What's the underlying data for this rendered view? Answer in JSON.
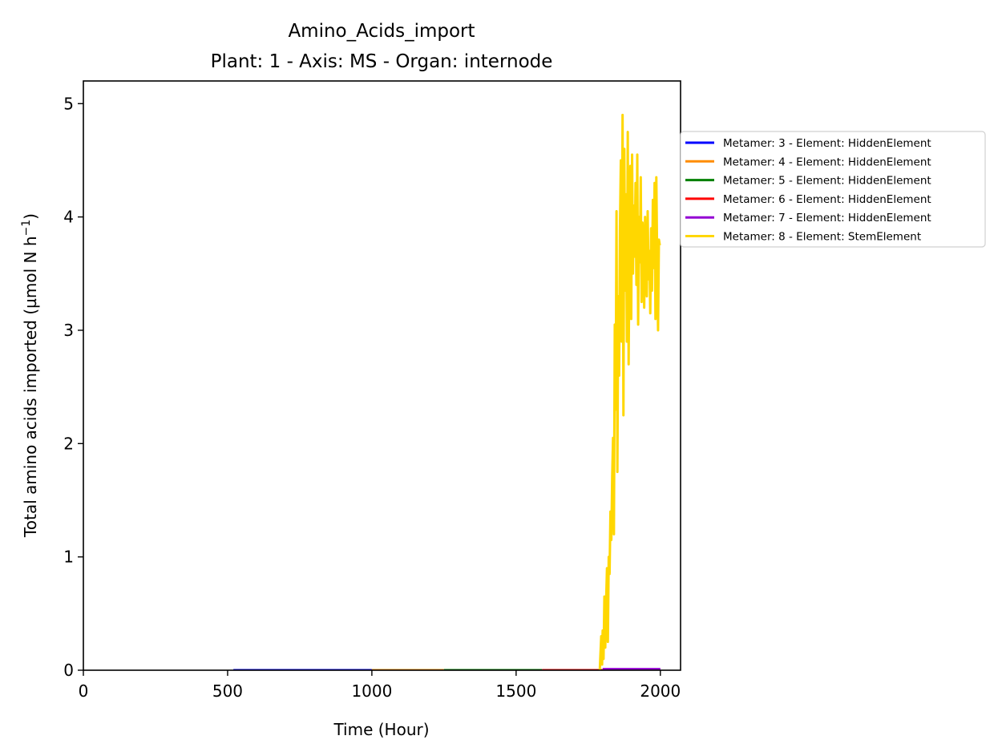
{
  "chart_data": {
    "type": "line",
    "title": "Amino_Acids_import",
    "subtitle": "Plant: 1 - Axis: MS - Organ: internode",
    "xlabel": "Time (Hour)",
    "ylabel": "Total amino acids imported (µmol N h",
    "ylabel_sup": "−1",
    "ylabel_close": ")",
    "xlim": [
      0,
      2070
    ],
    "ylim": [
      0,
      5.2
    ],
    "xticks": [
      0,
      500,
      1000,
      1500,
      2000
    ],
    "yticks": [
      0,
      1,
      2,
      3,
      4,
      5
    ],
    "grid": false,
    "legend_placement": "outside right, top",
    "series": [
      {
        "name": "Metamer: 3 - Element: HiddenElement",
        "color": "#0000ff",
        "x": [
          520,
          1000
        ],
        "y": [
          0,
          0
        ]
      },
      {
        "name": "Metamer: 4 - Element: HiddenElement",
        "color": "#ff8c00",
        "x": [
          1000,
          1250
        ],
        "y": [
          0,
          0
        ]
      },
      {
        "name": "Metamer: 5 - Element: HiddenElement",
        "color": "#008000",
        "x": [
          1250,
          1590
        ],
        "y": [
          0,
          0
        ]
      },
      {
        "name": "Metamer: 6 - Element: HiddenElement",
        "color": "#ff0000",
        "x": [
          1590,
          1800
        ],
        "y": [
          0,
          0
        ]
      },
      {
        "name": "Metamer: 7 - Element: HiddenElement",
        "color": "#9400d3",
        "x": [
          1800,
          2000
        ],
        "y": [
          0.01,
          0.01
        ]
      },
      {
        "name": "Metamer: 8 - Element: StemElement",
        "color": "#ffd700",
        "x": [
          1790,
          1795,
          1798,
          1800,
          1803,
          1806,
          1809,
          1812,
          1815,
          1818,
          1821,
          1824,
          1827,
          1830,
          1833,
          1836,
          1839,
          1842,
          1845,
          1848,
          1851,
          1854,
          1857,
          1860,
          1863,
          1866,
          1869,
          1872,
          1875,
          1878,
          1881,
          1884,
          1887,
          1890,
          1893,
          1896,
          1899,
          1902,
          1905,
          1908,
          1911,
          1914,
          1917,
          1920,
          1923,
          1926,
          1929,
          1932,
          1935,
          1938,
          1941,
          1944,
          1947,
          1950,
          1953,
          1956,
          1959,
          1962,
          1965,
          1968,
          1971,
          1974,
          1977,
          1980,
          1983,
          1986,
          1989,
          1992,
          1995,
          1998
        ],
        "y": [
          0,
          0.3,
          0.05,
          0.35,
          0.1,
          0.65,
          0.2,
          0.6,
          0.9,
          0.25,
          1.0,
          0.85,
          1.4,
          1.15,
          1.7,
          2.05,
          1.2,
          3.05,
          2.3,
          4.05,
          1.75,
          3.3,
          2.6,
          3.9,
          4.5,
          2.9,
          4.9,
          2.25,
          4.6,
          3.35,
          4.2,
          2.9,
          4.75,
          2.7,
          3.8,
          4.45,
          3.1,
          4.55,
          3.5,
          4.1,
          3.65,
          4.3,
          3.4,
          4.55,
          3.05,
          4.0,
          3.6,
          4.35,
          3.25,
          3.95,
          3.75,
          3.2,
          4.0,
          3.55,
          3.3,
          4.05,
          3.45,
          3.7,
          3.15,
          3.9,
          3.35,
          4.15,
          3.55,
          4.3,
          3.1,
          4.35,
          3.6,
          3.0,
          3.8,
          3.75
        ]
      }
    ]
  }
}
